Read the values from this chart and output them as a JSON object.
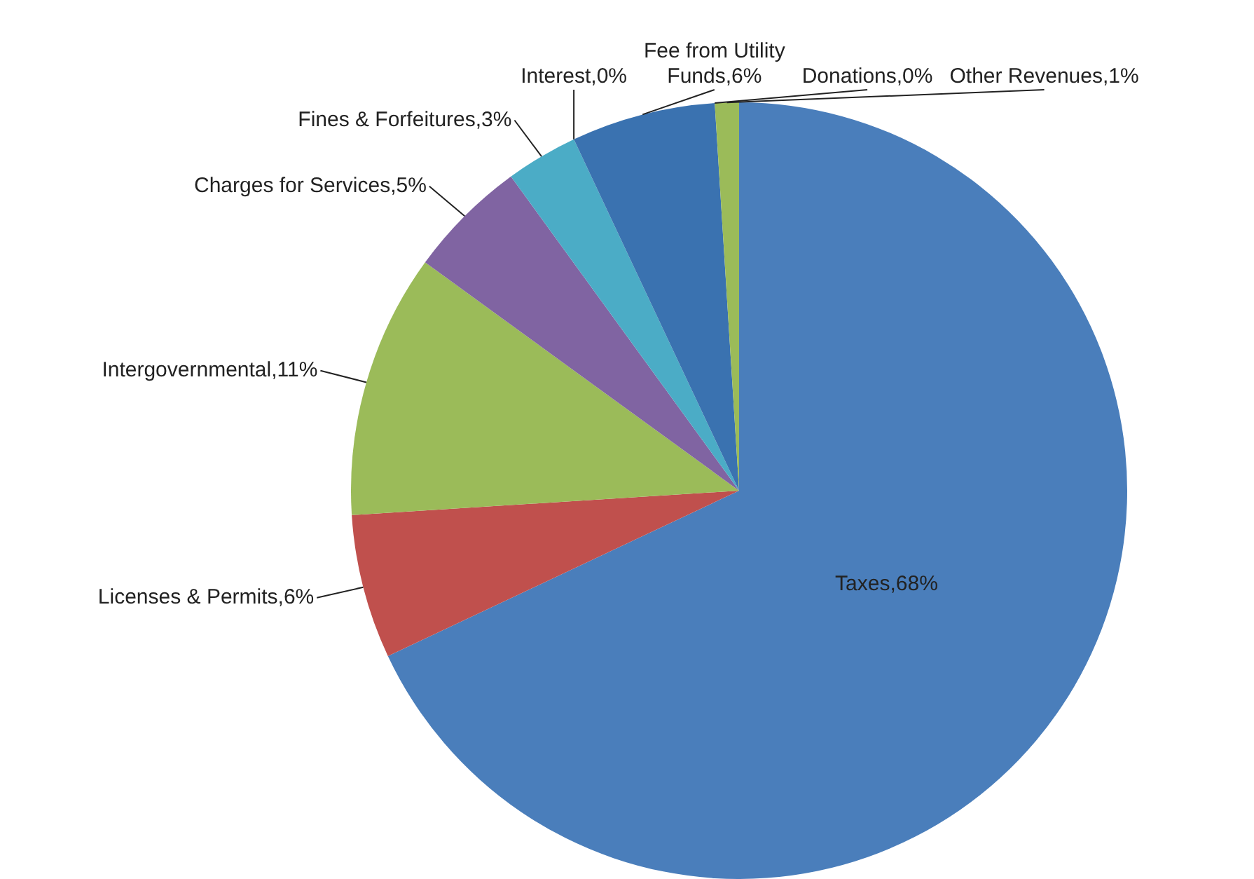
{
  "chart_data": {
    "type": "pie",
    "categories": [
      "Taxes",
      "Licenses & Permits",
      "Intergovernmental",
      "Charges for Services",
      "Fines & Forfeitures",
      "Interest",
      "Fee from Utility Funds",
      "Donations",
      "Other Revenues"
    ],
    "values": [
      68,
      6,
      11,
      5,
      3,
      0,
      6,
      0,
      1
    ],
    "value_labels": [
      ",68%",
      ",6%",
      ",11%",
      ",5%",
      ",3%",
      ",0%",
      ",6%",
      ",0%",
      ",1%"
    ],
    "colors": [
      "#4a7ebb",
      "#c0504d",
      "#9bbb59",
      "#8064a2",
      "#4bacc6",
      "#f79646",
      "#3a72b0",
      "#d04a3a",
      "#9bbb59"
    ],
    "legend": false
  }
}
